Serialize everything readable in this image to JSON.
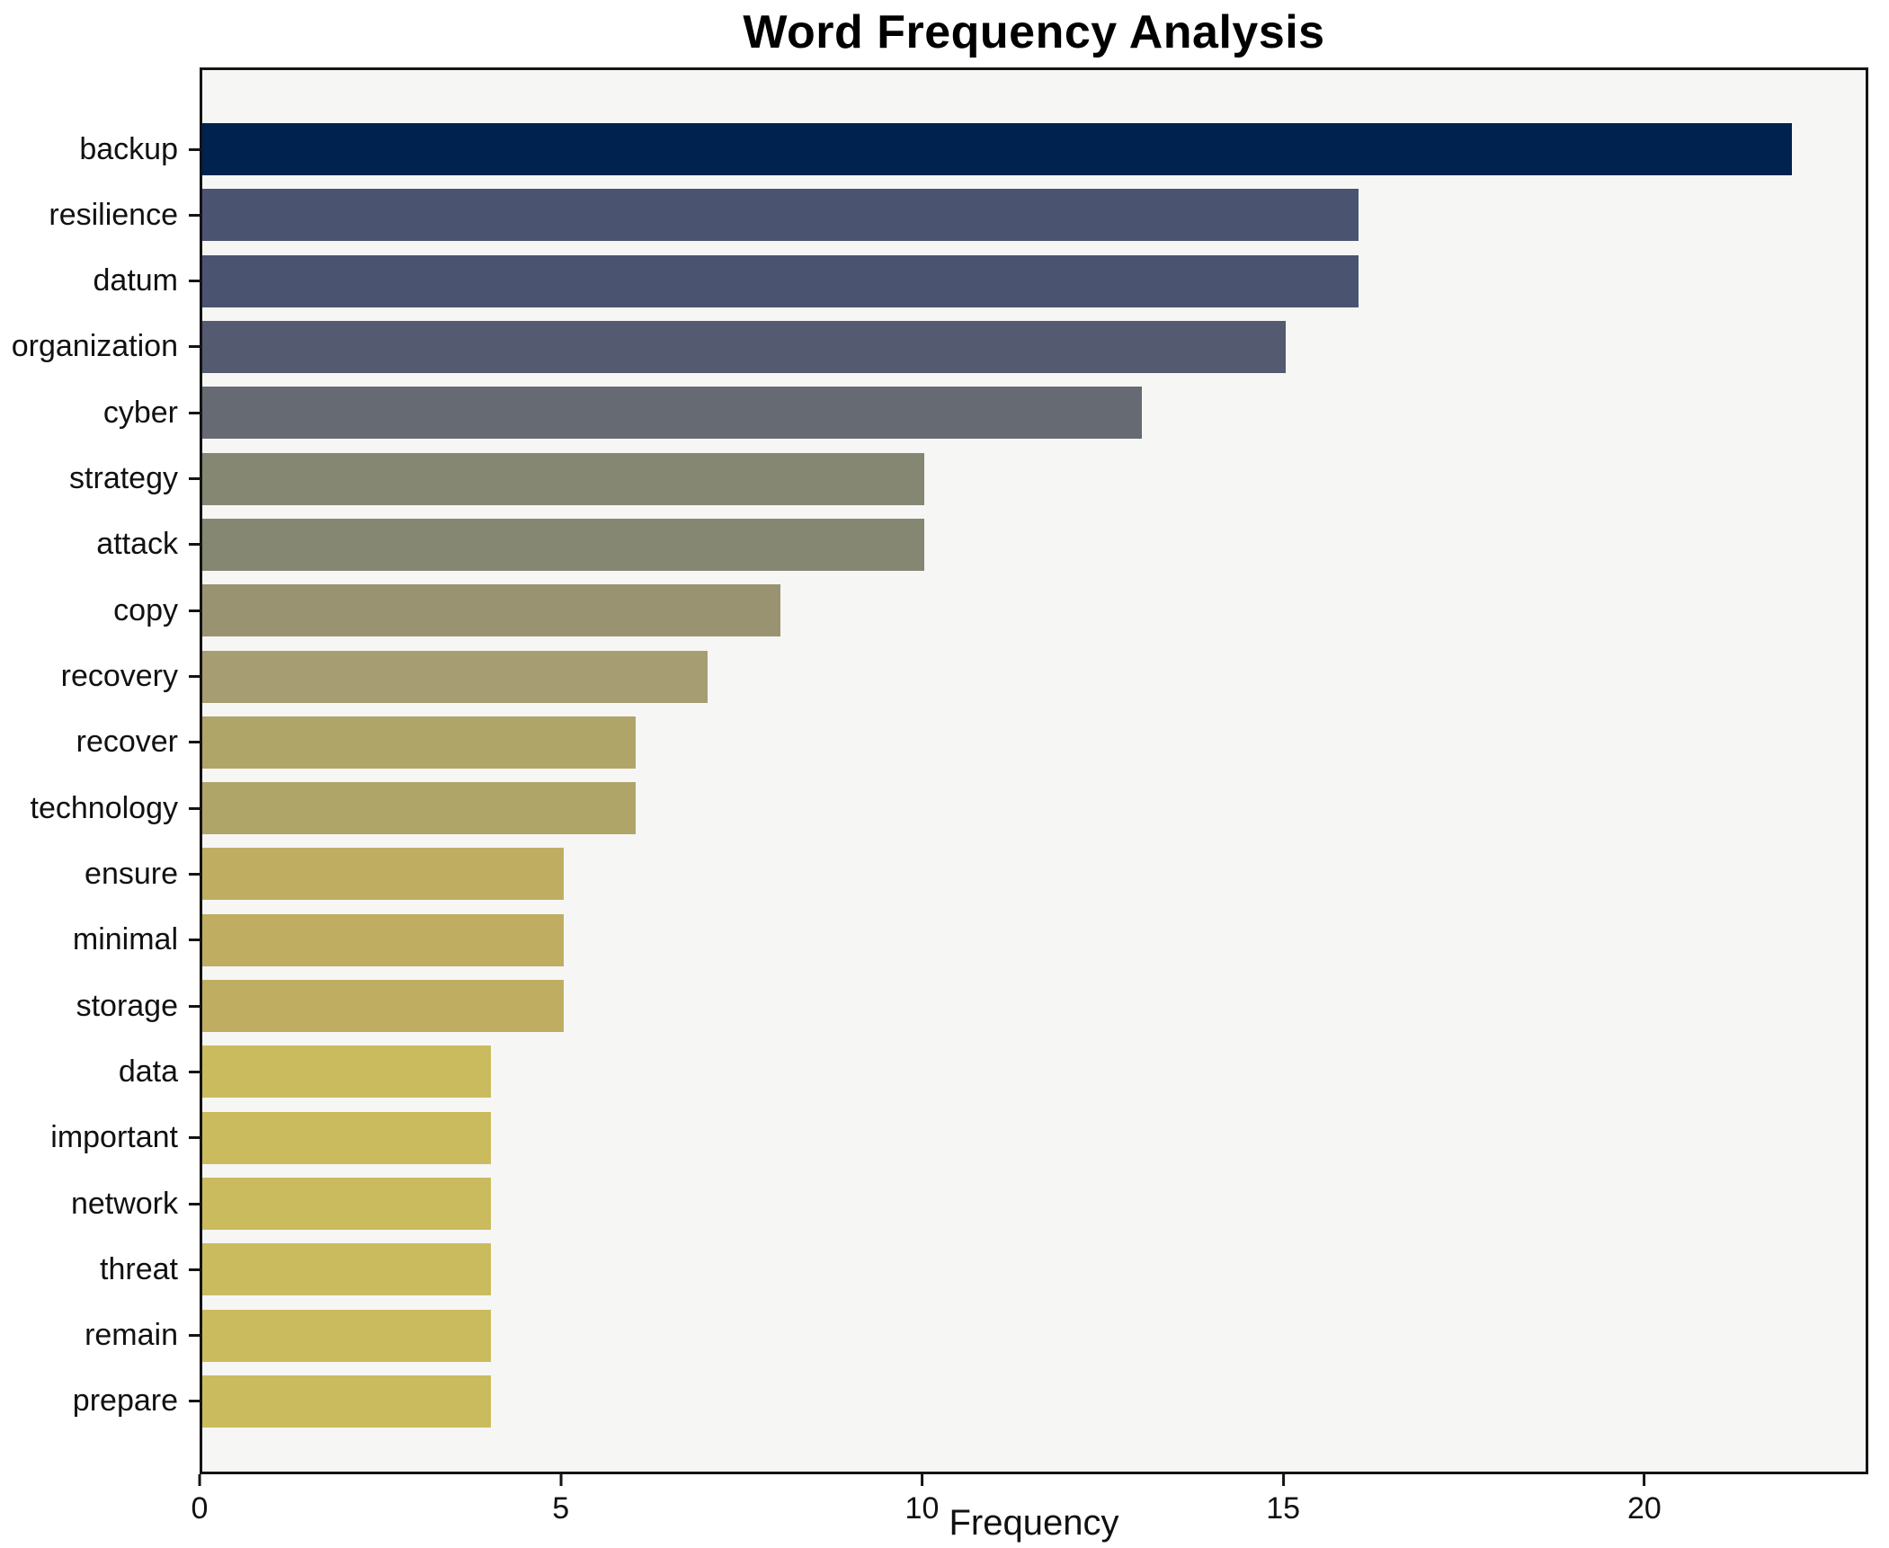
{
  "chart_data": {
    "type": "bar",
    "orientation": "horizontal",
    "title": "Word Frequency Analysis",
    "xlabel": "Frequency",
    "ylabel": "",
    "categories": [
      "backup",
      "resilience",
      "datum",
      "organization",
      "cyber",
      "strategy",
      "attack",
      "copy",
      "recovery",
      "recover",
      "technology",
      "ensure",
      "minimal",
      "storage",
      "data",
      "important",
      "network",
      "threat",
      "remain",
      "prepare"
    ],
    "values": [
      22,
      16,
      16,
      15,
      13,
      10,
      10,
      8,
      7,
      6,
      6,
      5,
      5,
      5,
      4,
      4,
      4,
      4,
      4,
      4
    ],
    "bar_colors": [
      "#00224e",
      "#4a5470",
      "#4a5470",
      "#545a70",
      "#666a72",
      "#868772",
      "#868772",
      "#9a9372",
      "#a69d72",
      "#b0a569",
      "#b0a569",
      "#bfae62",
      "#bfae62",
      "#bfae62",
      "#cbbb5f",
      "#cbbb5f",
      "#cbbb5f",
      "#cbbb5f",
      "#cbbb5f",
      "#cbbb5f"
    ],
    "xlim": [
      0,
      23.1
    ],
    "xticks": [
      0,
      5,
      10,
      15,
      20
    ],
    "grid": false,
    "legend": null,
    "plot_bg": "#f6f6f5",
    "figure_bg": "#ffffff",
    "axis_color": "#141414",
    "bar_height_fraction": 0.8
  }
}
